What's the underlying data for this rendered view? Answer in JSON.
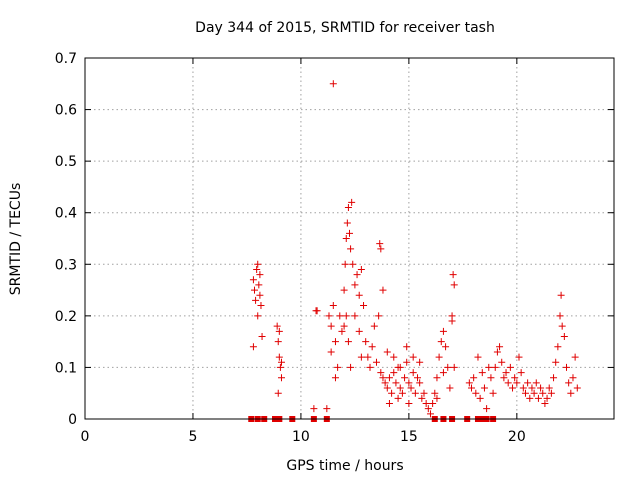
{
  "chart_data": {
    "type": "scatter",
    "title": "Day 344 of 2015, SRMTID for receiver tash",
    "xlabel": "GPS time / hours",
    "ylabel": "SRMTID / TECUs",
    "xlim": [
      0,
      24.5
    ],
    "ylim": [
      0,
      0.7
    ],
    "x_ticks": [
      "0",
      "5",
      "10",
      "15",
      "20"
    ],
    "y_ticks": [
      "0",
      "0.1",
      "0.2",
      "0.3",
      "0.4",
      "0.5",
      "0.6",
      "0.7"
    ],
    "grid": true,
    "marker": "plus",
    "color": "#e00000",
    "series": [
      {
        "name": "tash",
        "points": [
          [
            7.8,
            0.27
          ],
          [
            7.85,
            0.25
          ],
          [
            7.9,
            0.23
          ],
          [
            7.95,
            0.29
          ],
          [
            8.0,
            0.2
          ],
          [
            8.05,
            0.26
          ],
          [
            8.1,
            0.28
          ],
          [
            8.15,
            0.22
          ],
          [
            8.2,
            0.16
          ],
          [
            7.8,
            0.14
          ],
          [
            8.0,
            0.3
          ],
          [
            8.1,
            0.24
          ],
          [
            8.9,
            0.18
          ],
          [
            8.95,
            0.15
          ],
          [
            9.0,
            0.12
          ],
          [
            9.05,
            0.1
          ],
          [
            9.1,
            0.08
          ],
          [
            8.95,
            0.05
          ],
          [
            9.0,
            0.17
          ],
          [
            9.1,
            0.11
          ],
          [
            10.7,
            0.21
          ],
          [
            10.75,
            0.21
          ],
          [
            10.6,
            0.02
          ],
          [
            11.2,
            0.02
          ],
          [
            11.3,
            0.2
          ],
          [
            11.4,
            0.18
          ],
          [
            11.5,
            0.22
          ],
          [
            11.6,
            0.15
          ],
          [
            11.7,
            0.1
          ],
          [
            11.8,
            0.2
          ],
          [
            11.9,
            0.17
          ],
          [
            11.5,
            0.65
          ],
          [
            11.6,
            0.08
          ],
          [
            11.4,
            0.13
          ],
          [
            12.0,
            0.25
          ],
          [
            12.05,
            0.3
          ],
          [
            12.1,
            0.35
          ],
          [
            12.15,
            0.38
          ],
          [
            12.2,
            0.41
          ],
          [
            12.25,
            0.36
          ],
          [
            12.3,
            0.33
          ],
          [
            12.35,
            0.42
          ],
          [
            12.1,
            0.2
          ],
          [
            12.2,
            0.15
          ],
          [
            12.0,
            0.18
          ],
          [
            12.3,
            0.1
          ],
          [
            12.4,
            0.3
          ],
          [
            12.5,
            0.26
          ],
          [
            12.6,
            0.28
          ],
          [
            12.7,
            0.24
          ],
          [
            12.8,
            0.29
          ],
          [
            12.9,
            0.22
          ],
          [
            12.5,
            0.2
          ],
          [
            12.7,
            0.17
          ],
          [
            12.8,
            0.12
          ],
          [
            13.0,
            0.15
          ],
          [
            13.1,
            0.12
          ],
          [
            13.2,
            0.1
          ],
          [
            13.3,
            0.14
          ],
          [
            13.4,
            0.18
          ],
          [
            13.5,
            0.11
          ],
          [
            13.6,
            0.2
          ],
          [
            13.65,
            0.34
          ],
          [
            13.7,
            0.33
          ],
          [
            13.8,
            0.25
          ],
          [
            13.7,
            0.09
          ],
          [
            13.8,
            0.08
          ],
          [
            13.9,
            0.07
          ],
          [
            14.0,
            0.06
          ],
          [
            14.1,
            0.08
          ],
          [
            14.2,
            0.05
          ],
          [
            14.3,
            0.09
          ],
          [
            14.4,
            0.07
          ],
          [
            14.5,
            0.1
          ],
          [
            14.6,
            0.06
          ],
          [
            14.7,
            0.05
          ],
          [
            14.8,
            0.08
          ],
          [
            14.9,
            0.11
          ],
          [
            15.0,
            0.07
          ],
          [
            15.1,
            0.06
          ],
          [
            15.2,
            0.09
          ],
          [
            15.3,
            0.05
          ],
          [
            15.4,
            0.08
          ],
          [
            15.5,
            0.07
          ],
          [
            15.6,
            0.04
          ],
          [
            15.7,
            0.05
          ],
          [
            14.0,
            0.13
          ],
          [
            14.3,
            0.12
          ],
          [
            14.6,
            0.1
          ],
          [
            14.9,
            0.14
          ],
          [
            15.2,
            0.12
          ],
          [
            15.5,
            0.11
          ],
          [
            14.1,
            0.03
          ],
          [
            14.5,
            0.04
          ],
          [
            15.0,
            0.03
          ],
          [
            15.8,
            0.03
          ],
          [
            15.9,
            0.02
          ],
          [
            16.0,
            0.01
          ],
          [
            16.1,
            0.03
          ],
          [
            16.2,
            0.05
          ],
          [
            16.3,
            0.08
          ],
          [
            16.4,
            0.12
          ],
          [
            16.5,
            0.15
          ],
          [
            16.6,
            0.17
          ],
          [
            16.7,
            0.14
          ],
          [
            16.8,
            0.1
          ],
          [
            16.9,
            0.06
          ],
          [
            16.3,
            0.04
          ],
          [
            16.6,
            0.09
          ],
          [
            17.0,
            0.2
          ],
          [
            17.05,
            0.28
          ],
          [
            17.1,
            0.26
          ],
          [
            17.0,
            0.19
          ],
          [
            17.1,
            0.1
          ],
          [
            17.8,
            0.07
          ],
          [
            17.9,
            0.06
          ],
          [
            18.0,
            0.08
          ],
          [
            18.1,
            0.05
          ],
          [
            18.2,
            0.12
          ],
          [
            18.3,
            0.04
          ],
          [
            18.4,
            0.09
          ],
          [
            18.5,
            0.06
          ],
          [
            18.6,
            0.02
          ],
          [
            18.7,
            0.1
          ],
          [
            18.8,
            0.08
          ],
          [
            18.9,
            0.05
          ],
          [
            19.0,
            0.1
          ],
          [
            19.1,
            0.13
          ],
          [
            19.2,
            0.14
          ],
          [
            19.3,
            0.11
          ],
          [
            19.4,
            0.08
          ],
          [
            19.5,
            0.09
          ],
          [
            19.6,
            0.07
          ],
          [
            19.7,
            0.1
          ],
          [
            19.8,
            0.06
          ],
          [
            19.9,
            0.08
          ],
          [
            20.0,
            0.07
          ],
          [
            20.1,
            0.12
          ],
          [
            20.2,
            0.09
          ],
          [
            20.3,
            0.06
          ],
          [
            20.4,
            0.05
          ],
          [
            20.5,
            0.07
          ],
          [
            20.6,
            0.04
          ],
          [
            20.7,
            0.06
          ],
          [
            20.8,
            0.05
          ],
          [
            20.9,
            0.07
          ],
          [
            21.0,
            0.04
          ],
          [
            21.1,
            0.06
          ],
          [
            21.2,
            0.05
          ],
          [
            21.3,
            0.03
          ],
          [
            21.4,
            0.04
          ],
          [
            21.5,
            0.06
          ],
          [
            21.6,
            0.05
          ],
          [
            21.7,
            0.08
          ],
          [
            21.8,
            0.11
          ],
          [
            21.9,
            0.14
          ],
          [
            22.0,
            0.2
          ],
          [
            22.05,
            0.24
          ],
          [
            22.1,
            0.18
          ],
          [
            22.2,
            0.16
          ],
          [
            22.3,
            0.1
          ],
          [
            22.4,
            0.07
          ],
          [
            22.5,
            0.05
          ],
          [
            22.6,
            0.08
          ],
          [
            22.7,
            0.12
          ],
          [
            22.8,
            0.06
          ]
        ],
        "zero_points": [
          7.7,
          8.0,
          8.3,
          8.8,
          9.0,
          9.6,
          10.6,
          11.2,
          16.2,
          16.6,
          17.0,
          17.7,
          18.2,
          18.4,
          18.6,
          18.9
        ]
      }
    ]
  }
}
